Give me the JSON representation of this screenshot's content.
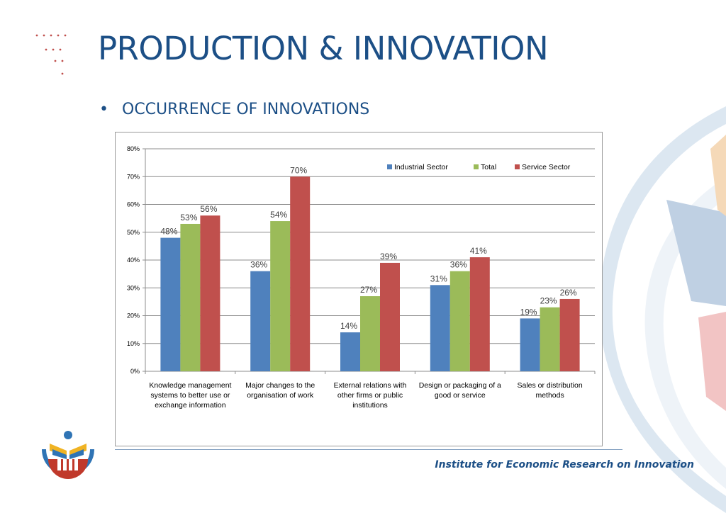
{
  "slide": {
    "title": "PRODUCTION & INNOVATION",
    "bullet": "OCCURRENCE OF INNOVATIONS",
    "footer": "Institute for Economic Research on Innovation"
  },
  "colors": {
    "title": "#1c4f86",
    "industrial": "#4f81bd",
    "total": "#9bbb59",
    "service": "#c0504d"
  },
  "chart_data": {
    "type": "bar",
    "categories": [
      [
        "Knowledge management",
        "systems to better use or",
        "exchange information"
      ],
      [
        "Major changes to the",
        "organisation of work"
      ],
      [
        "External relations with",
        "other firms or public",
        "institutions"
      ],
      [
        "Design or packaging of a",
        "good or service"
      ],
      [
        "Sales or distribution",
        "methods"
      ]
    ],
    "series": [
      {
        "name": "Industrial Sector",
        "values": [
          48,
          36,
          14,
          31,
          19
        ],
        "color": "#4f81bd"
      },
      {
        "name": "Total",
        "values": [
          53,
          54,
          27,
          36,
          23
        ],
        "color": "#9bbb59"
      },
      {
        "name": "Service Sector",
        "values": [
          56,
          70,
          39,
          41,
          26
        ],
        "color": "#c0504d"
      }
    ],
    "value_suffix": "%",
    "ylim": [
      0,
      80
    ],
    "yticks": [
      "0%",
      "10%",
      "20%",
      "30%",
      "40%",
      "50%",
      "60%",
      "70%",
      "80%"
    ],
    "grid": true,
    "legend_position": "top-right"
  }
}
